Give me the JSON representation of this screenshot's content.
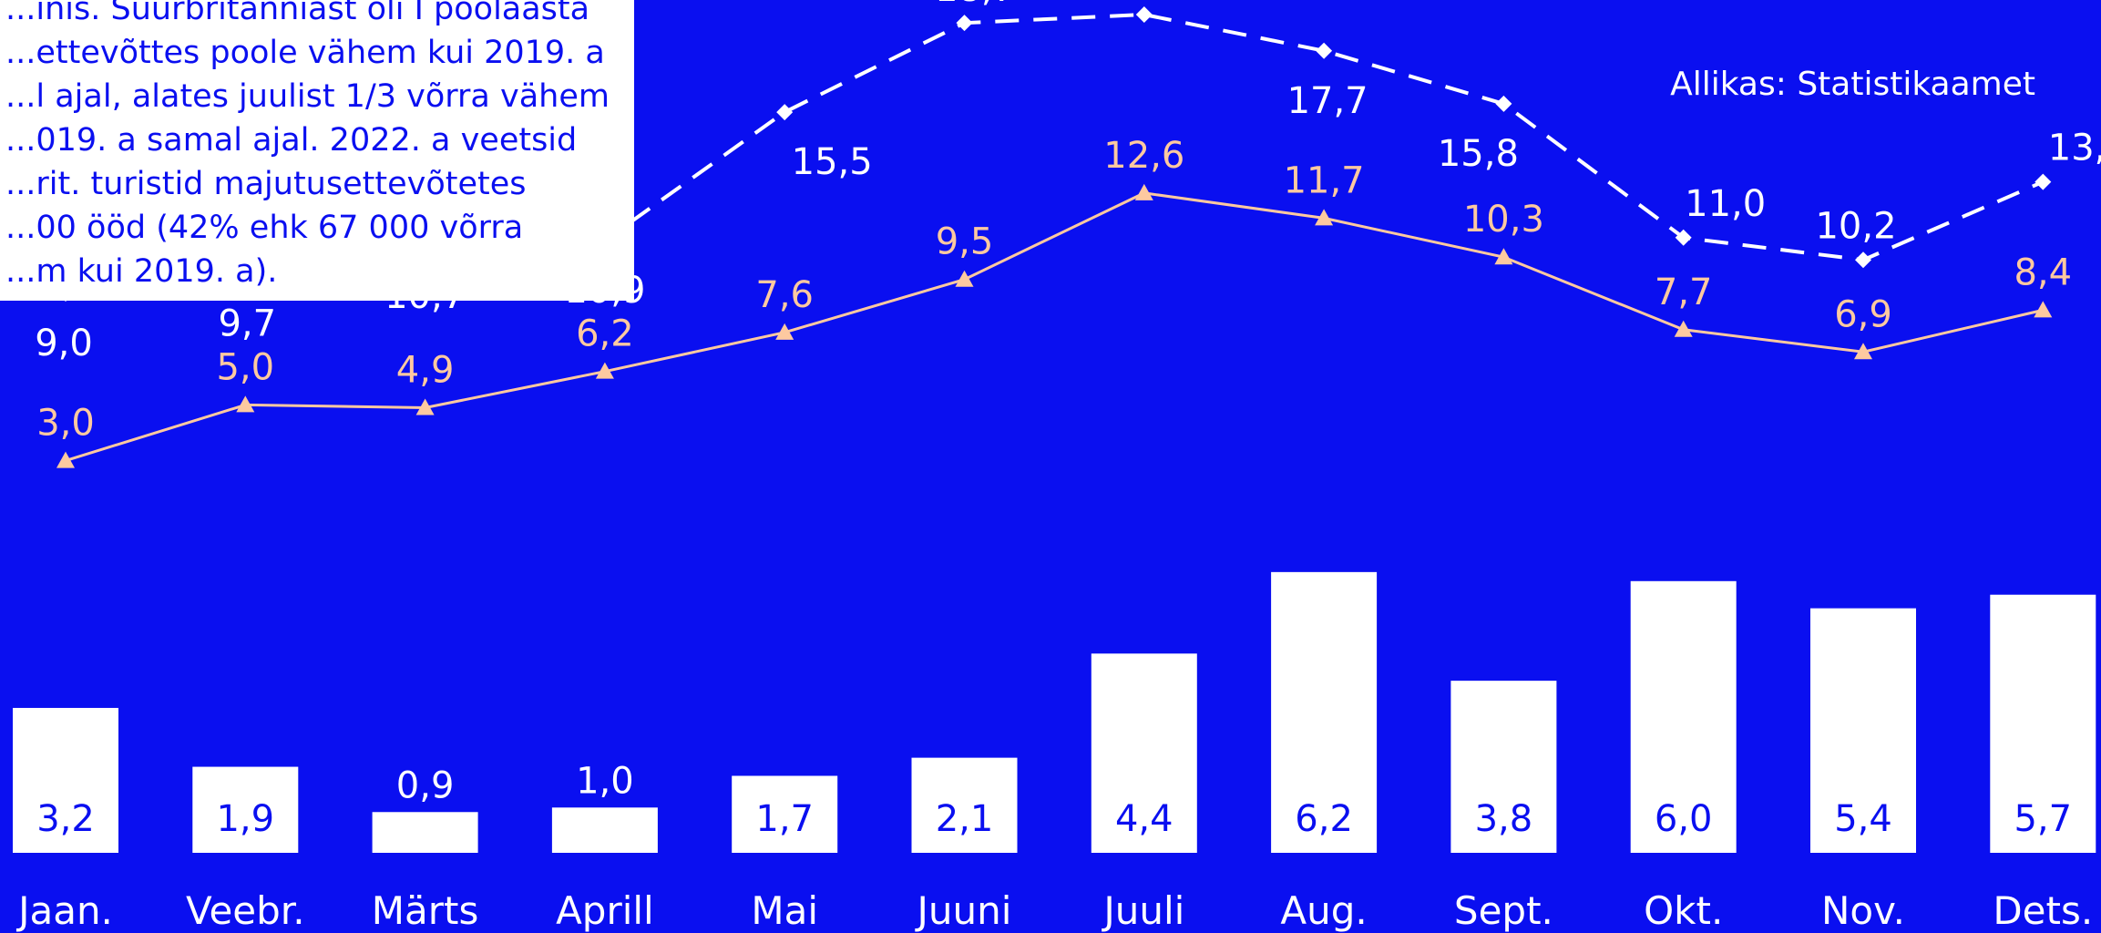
{
  "note": {
    "lines": [
      "...inis. Suurbritanniast oli I poolaasta",
      "...ettevõttes poole vähem kui 2019. a",
      "...l ajal, alates juulist 1/3 võrra vähem",
      "...019. a samal ajal. 2022. a veetsid",
      "...rit. turistid majutusettevõtetes",
      "...00 ööd (42% ehk 67 000 võrra",
      "...m kui 2019. a)."
    ]
  },
  "source": "Allikas: Statistikaamet",
  "colors": {
    "background": "#0a0ff0",
    "bars_2021": "#ffffff",
    "line_2019": "#ffffff",
    "line_2022": "#fdc9a0",
    "bar_label": "#0a0ff0"
  },
  "chart_data": {
    "type": "bar",
    "categories": [
      "Jaan.",
      "Veebr.",
      "Märts",
      "Aprill",
      "Mai",
      "Juuni",
      "Juuli",
      "Aug.",
      "Sept.",
      "Okt.",
      "Nov.",
      "Dets."
    ],
    "series": [
      {
        "name": "2021",
        "type": "bar",
        "values": [
          3.2,
          1.9,
          0.9,
          1.0,
          1.7,
          2.1,
          4.4,
          6.2,
          3.8,
          6.0,
          5.4,
          5.7
        ],
        "labels": [
          "3,2",
          "1,9",
          "0,9",
          "1,0",
          "1,7",
          "2,1",
          "4,4",
          "6,2",
          "3,8",
          "6,0",
          "5,4",
          "5,7"
        ]
      },
      {
        "name": "2019",
        "type": "line",
        "style": "dashed",
        "marker": "diamond",
        "values": [
          9.0,
          9.7,
          10.7,
          10.9,
          15.5,
          18.7,
          19.0,
          17.7,
          15.8,
          11.0,
          10.2,
          13.0
        ],
        "labels": [
          "9,0",
          "9,7",
          "10,7",
          "10,9",
          "15,5",
          "18,7",
          "19,0",
          "17,7",
          "15,8",
          "11,0",
          "10,2",
          "13,0"
        ]
      },
      {
        "name": "2022",
        "type": "line",
        "style": "solid",
        "marker": "triangle",
        "values": [
          3.0,
          5.0,
          4.9,
          6.2,
          7.6,
          9.5,
          12.6,
          11.7,
          10.3,
          7.7,
          6.9,
          8.4
        ],
        "labels": [
          "3,0",
          "5,0",
          "4,9",
          "6,2",
          "7,6",
          "9,5",
          "12,6",
          "11,7",
          "10,3",
          "7,7",
          "6,9",
          "8,4"
        ]
      }
    ],
    "legend_position": "top-right",
    "grid": false
  }
}
